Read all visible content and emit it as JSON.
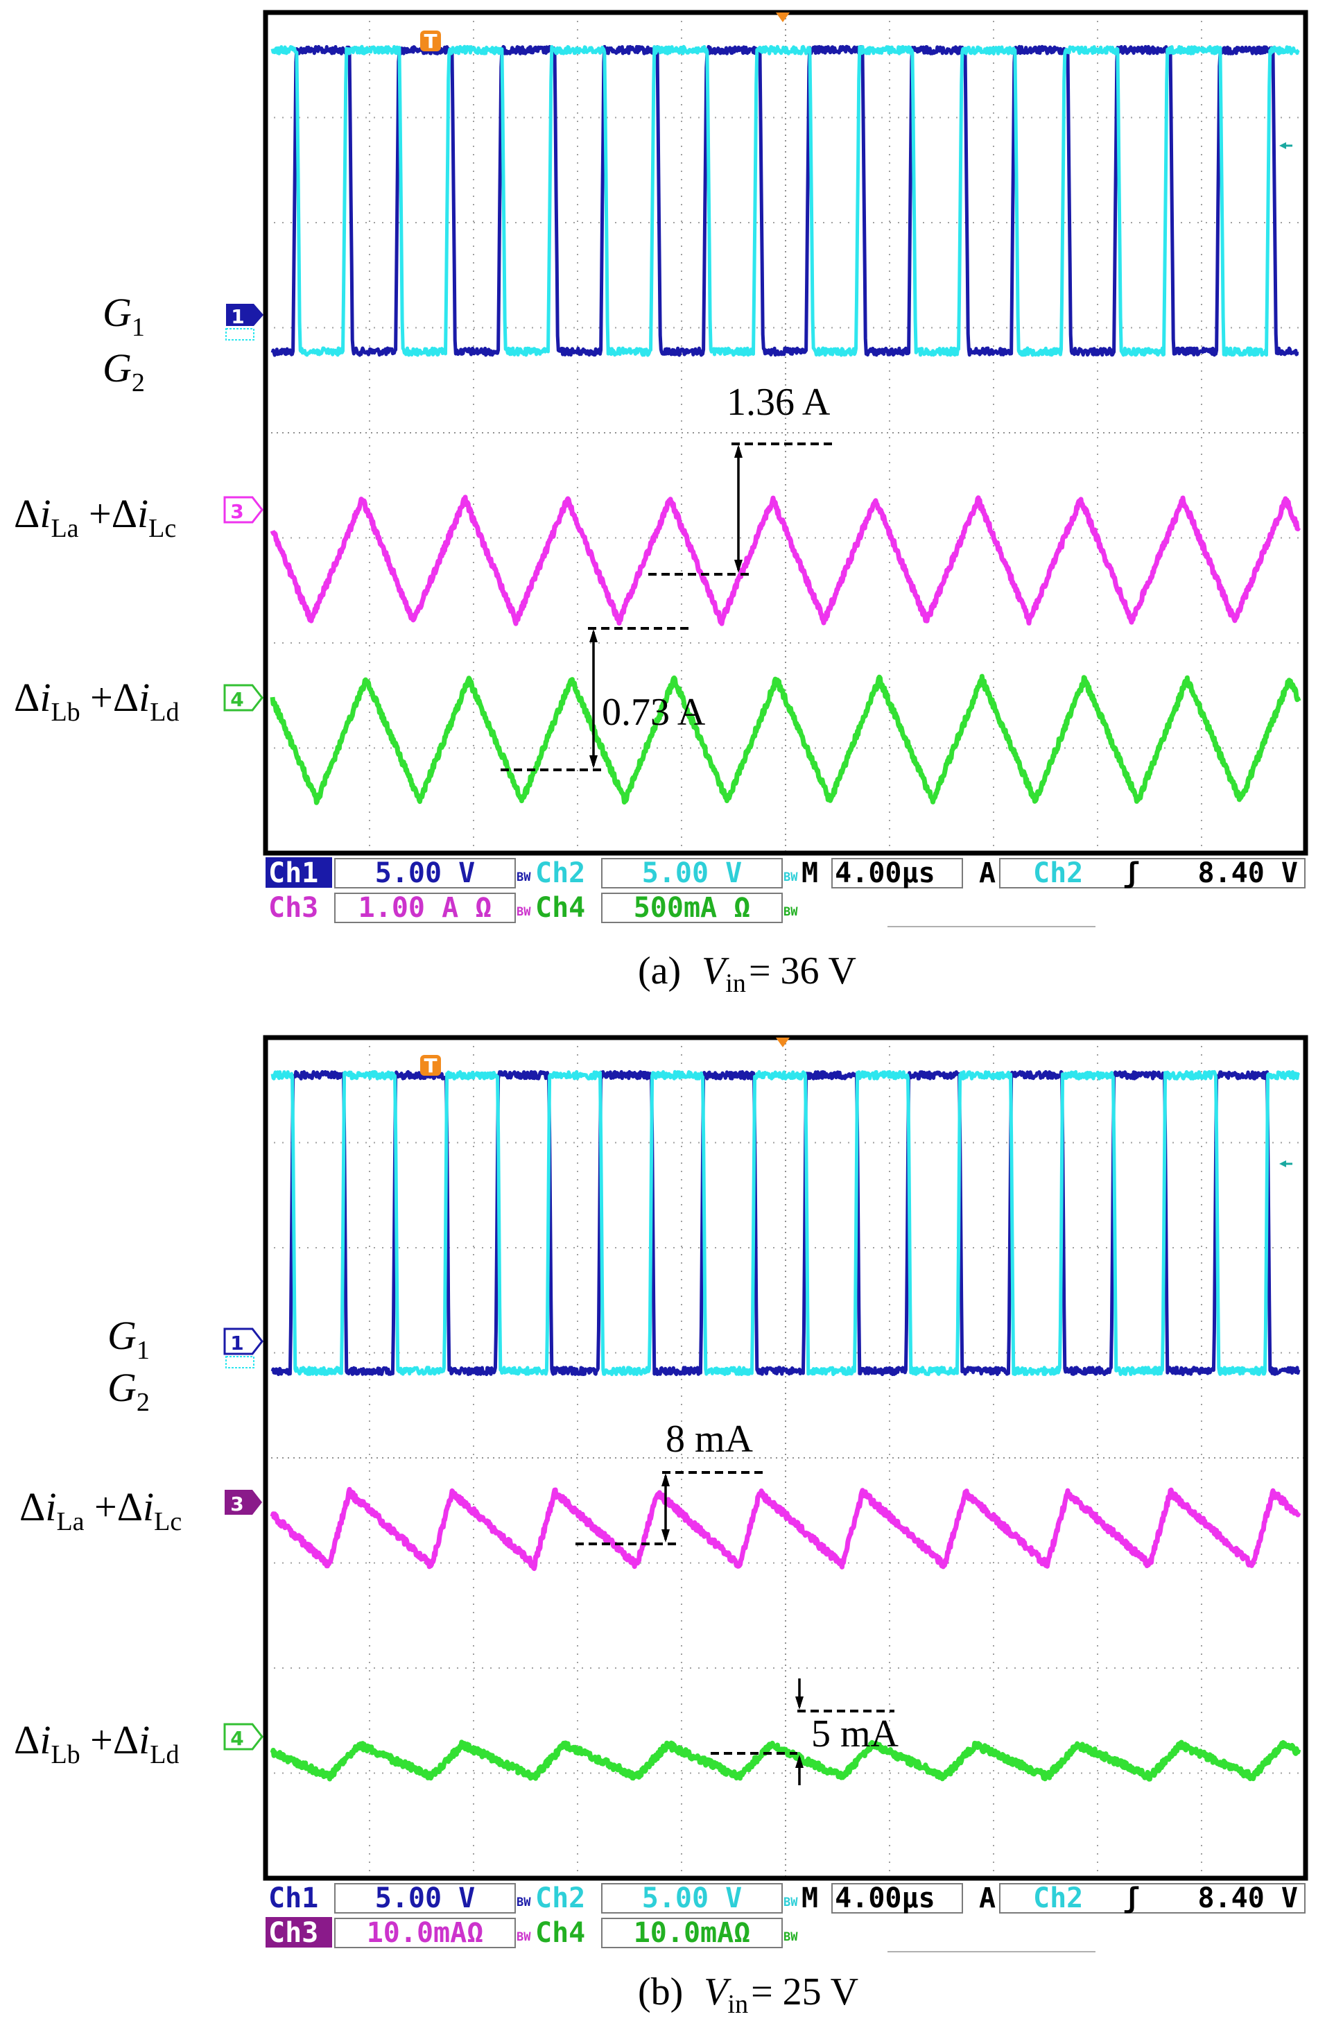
{
  "chart_data": [
    {
      "type": "line",
      "panel": "a",
      "caption": {
        "prefix": "(a)",
        "var": "V",
        "sub": "in",
        "rest": "= 36 V"
      },
      "grid": true,
      "traces": [
        {
          "channel": "1",
          "color": "#1a1aa8",
          "label": {
            "main": "G",
            "sub": "1",
            "italic": true
          },
          "label_suffix": "",
          "kind": "pulse",
          "period_us": 4.0,
          "phase_us": 0.8,
          "duty": 0.55,
          "rise_us": 0.12,
          "low_div": 5.85,
          "high_div": 0.65
        },
        {
          "channel": "2",
          "color": "#2ee6ee",
          "label": {
            "main": "G",
            "sub": "2",
            "italic": true
          },
          "label_suffix": "",
          "kind": "pulse",
          "period_us": 4.0,
          "phase_us": 2.75,
          "duty": 0.55,
          "rise_us": 0.12,
          "low_div": 5.85,
          "high_div": 0.65
        },
        {
          "channel": "3",
          "color": "#ee33ee",
          "label": {
            "main": "Δi",
            "sub": "La",
            "italic": false
          },
          "label_suffix": "+Δi_Lc",
          "kind": "triangle",
          "period_us": 4.0,
          "peak_at_us": 3.5,
          "fall_frac": 0.5,
          "top_div": 8.4,
          "bottom_div": 10.5
        },
        {
          "channel": "4",
          "color": "#33e033",
          "label": {
            "main": "Δi",
            "sub": "Lb",
            "italic": false
          },
          "label_suffix": "+Δi_Ld",
          "kind": "triangle",
          "period_us": 4.0,
          "peak_at_us": 3.65,
          "fall_frac": 0.52,
          "top_div": 11.5,
          "bottom_div": 13.6
        }
      ],
      "annotations": [
        {
          "text": "1.36 A",
          "channel": "3"
        },
        {
          "text": "0.73 A",
          "channel": "4"
        }
      ],
      "readout": {
        "row1": [
          {
            "name": "Ch1",
            "value": "5.00 V"
          },
          {
            "name": "Ch2",
            "value": "5.00 V"
          }
        ],
        "row2": [
          {
            "name": "Ch3",
            "value": "1.00 A Ω"
          },
          {
            "name": "Ch4",
            "value": "500mA Ω"
          }
        ],
        "timebase": "M 4.00µs",
        "trigger_mode": "A",
        "trigger_source": "Ch2",
        "trigger_slope": "ʃ",
        "trigger_level": "8.40 V",
        "bw": "BW"
      }
    },
    {
      "type": "line",
      "panel": "b",
      "caption": {
        "prefix": "(b)",
        "var": "V",
        "sub": "in",
        "rest": "= 25 V"
      },
      "grid": true,
      "traces": [
        {
          "channel": "1",
          "color": "#1a1aa8",
          "label": {
            "main": "G",
            "sub": "1",
            "italic": true
          },
          "label_suffix": "",
          "kind": "pulse",
          "period_us": 4.0,
          "phase_us": 0.7,
          "duty": 0.52,
          "rise_us": 0.1,
          "low_div": 5.75,
          "high_div": 0.65
        },
        {
          "channel": "2",
          "color": "#2ee6ee",
          "label": {
            "main": "G",
            "sub": "2",
            "italic": true
          },
          "label_suffix": "",
          "kind": "pulse",
          "period_us": 4.0,
          "phase_us": 2.7,
          "duty": 0.52,
          "rise_us": 0.1,
          "low_div": 5.75,
          "high_div": 0.65
        },
        {
          "channel": "3",
          "color": "#ee33ee",
          "label": {
            "main": "Δi",
            "sub": "La",
            "italic": false
          },
          "label_suffix": "+Δi_Lc",
          "kind": "triangle",
          "period_us": 4.0,
          "peak_at_us": 3.0,
          "fall_frac": 0.8,
          "top_div": 7.85,
          "bottom_div": 9.1
        },
        {
          "channel": "4",
          "color": "#33e033",
          "label": {
            "main": "Δi",
            "sub": "Lb",
            "italic": false
          },
          "label_suffix": "+Δi_Ld",
          "kind": "triangle",
          "period_us": 4.0,
          "peak_at_us": 3.4,
          "fall_frac": 0.7,
          "top_div": 12.2,
          "bottom_div": 12.75
        }
      ],
      "annotations": [
        {
          "text": "8 mA",
          "channel": "3"
        },
        {
          "text": "5 mA",
          "channel": "4"
        }
      ],
      "readout": {
        "row1": [
          {
            "name": "Ch1",
            "value": "5.00 V"
          },
          {
            "name": "Ch2",
            "value": "5.00 V"
          }
        ],
        "row2": [
          {
            "name": "Ch3",
            "value": "10.0mAΩ"
          },
          {
            "name": "Ch4",
            "value": "10.0mAΩ"
          }
        ],
        "timebase": "M 4.00µs",
        "trigger_mode": "A",
        "trigger_source": "Ch2",
        "trigger_slope": "ʃ",
        "trigger_level": "8.40 V",
        "bw": "BW"
      }
    }
  ],
  "trigger_marker": "T"
}
